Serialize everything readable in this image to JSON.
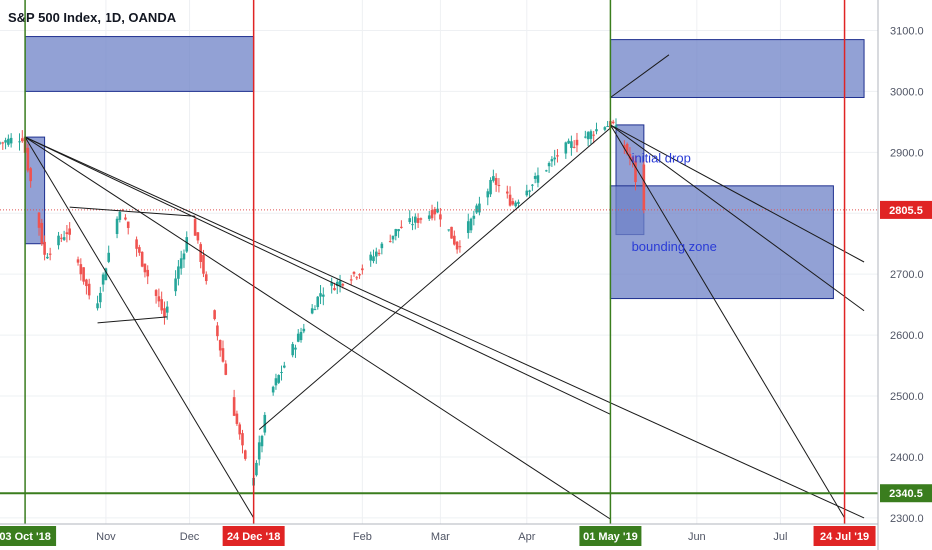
{
  "chart_data": {
    "type": "candlestick",
    "title": "S&P 500 Index, 1D, OANDA",
    "ylim": [
      2290,
      3150
    ],
    "y_ticks": [
      2300,
      2400,
      2500,
      2600,
      2700,
      2800,
      2900,
      3000,
      3100
    ],
    "x_ticks": [
      "Nov",
      "Dec",
      "Feb",
      "Mar",
      "Apr",
      "Jun",
      "Jul"
    ],
    "last_price": "2805.5",
    "level_label": "2340.5",
    "colors": {
      "up": "#26a69a",
      "down": "#ef5350",
      "zone_fill": "#6e82c7",
      "zone_stroke": "#1e2f8f",
      "green_line": "#3a7d1e",
      "red_line": "#e02424",
      "price_line": "#e05454",
      "annotation": "#2a3bd6"
    },
    "series": [
      {
        "name": "",
        "points": [
          {
            "date": "2018-09-24",
            "close": 2915
          },
          {
            "date": "2018-10-03",
            "close": 2925
          },
          {
            "date": "2018-10-11",
            "close": 2730
          },
          {
            "date": "2018-10-19",
            "close": 2770
          },
          {
            "date": "2018-10-29",
            "close": 2640
          },
          {
            "date": "2018-11-07",
            "close": 2810
          },
          {
            "date": "2018-11-23",
            "close": 2630
          },
          {
            "date": "2018-12-03",
            "close": 2790
          },
          {
            "date": "2018-12-10",
            "close": 2640
          },
          {
            "date": "2018-12-24",
            "close": 2350
          },
          {
            "date": "2018-12-31",
            "close": 2505
          },
          {
            "date": "2019-01-18",
            "close": 2670
          },
          {
            "date": "2019-02-01",
            "close": 2705
          },
          {
            "date": "2019-02-15",
            "close": 2775
          },
          {
            "date": "2019-03-01",
            "close": 2805
          },
          {
            "date": "2019-03-08",
            "close": 2745
          },
          {
            "date": "2019-03-21",
            "close": 2855
          },
          {
            "date": "2019-03-28",
            "close": 2815
          },
          {
            "date": "2019-04-15",
            "close": 2905
          },
          {
            "date": "2019-04-30",
            "close": 2945
          },
          {
            "date": "2019-05-03",
            "close": 2945
          },
          {
            "date": "2019-05-10",
            "close": 2880
          },
          {
            "date": "2019-05-13",
            "close": 2805.5
          }
        ]
      }
    ],
    "trendlines": [
      {
        "from": [
          "2018-10-03",
          2925
        ],
        "to": [
          "2018-12-24",
          2300
        ]
      },
      {
        "from": [
          "2018-10-03",
          2925
        ],
        "to": [
          "2019-05-01",
          2470
        ]
      },
      {
        "from": [
          "2018-10-03",
          2925
        ],
        "to": [
          "2019-07-31",
          2300
        ]
      },
      {
        "from": [
          "2018-10-03",
          2925
        ],
        "to": [
          "2019-05-01",
          2298
        ]
      },
      {
        "from": [
          "2018-10-19",
          2810
        ],
        "to": [
          "2018-12-03",
          2795
        ]
      },
      {
        "from": [
          "2018-10-29",
          2620
        ],
        "to": [
          "2018-11-23",
          2630
        ]
      },
      {
        "from": [
          "2018-12-26",
          2445
        ],
        "to": [
          "2019-05-01",
          2940
        ]
      },
      {
        "from": [
          "2019-05-01",
          2990
        ],
        "to": [
          "2019-05-22",
          3060
        ]
      },
      {
        "from": [
          "2019-05-01",
          2945
        ],
        "to": [
          "2019-07-31",
          2720
        ]
      },
      {
        "from": [
          "2019-05-01",
          2945
        ],
        "to": [
          "2019-07-31",
          2640
        ]
      },
      {
        "from": [
          "2019-05-01",
          2945
        ],
        "to": [
          "2019-07-24",
          2300
        ]
      }
    ],
    "zones": [
      {
        "x0": "2018-10-03",
        "x1": "2018-12-24",
        "y0": 3000,
        "y1": 3090
      },
      {
        "x0": "2019-05-01",
        "x1": "2019-07-31",
        "y0": 2990,
        "y1": 3085
      },
      {
        "x0": "2018-10-03",
        "x1": "2018-10-10",
        "y0": 2750,
        "y1": 2925
      },
      {
        "x0": "2019-05-03",
        "x1": "2019-05-13",
        "y0": 2765,
        "y1": 2945
      },
      {
        "x0": "2019-05-01",
        "x1": "2019-07-20",
        "y0": 2660,
        "y1": 2845
      }
    ],
    "vertical_lines": [
      {
        "date": "2018-10-03",
        "color": "green",
        "label": "03 Oct '18"
      },
      {
        "date": "2018-12-24",
        "color": "red",
        "label": "24 Dec '18"
      },
      {
        "date": "2019-05-01",
        "color": "green",
        "label": "01 May '19"
      },
      {
        "date": "2019-07-24",
        "color": "red",
        "label": "24 Jul '19"
      }
    ],
    "horizontal_level": 2340.5,
    "annotations": [
      {
        "text": "initial drop",
        "date": "2019-05-05",
        "price": 2890
      },
      {
        "text": "bounding zone",
        "date": "2019-05-05",
        "price": 2745
      }
    ]
  }
}
